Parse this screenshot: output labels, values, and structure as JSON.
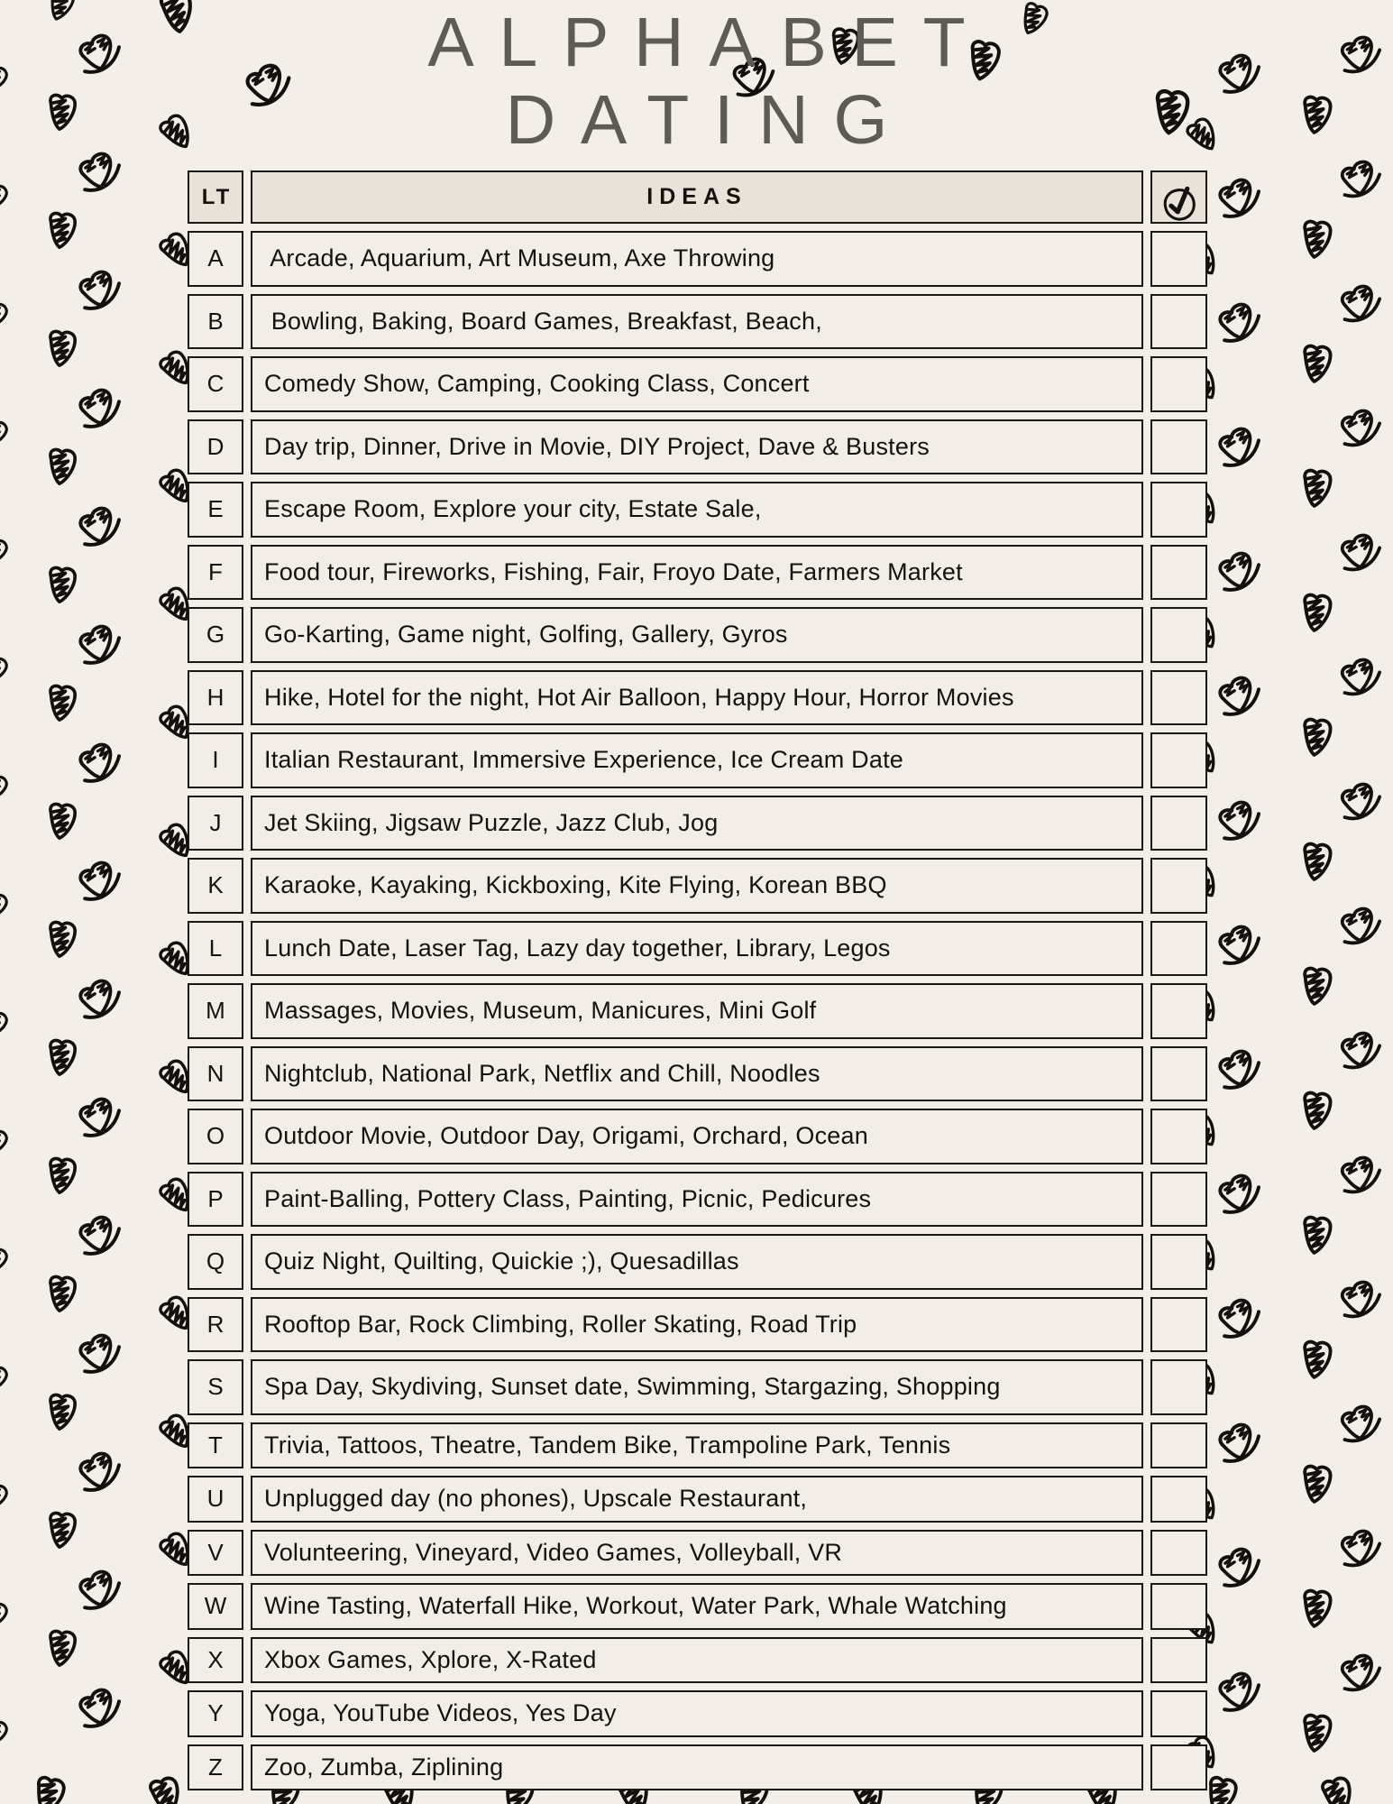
{
  "page": {
    "title_line1": "ALPHABET",
    "title_line2": "DATING"
  },
  "table": {
    "headers": {
      "letter": "LT",
      "ideas": "IDEAS",
      "done_icon": "circled-checkmark-icon"
    },
    "rows": [
      {
        "letter": "A",
        "ideas": " Arcade, Aquarium, Art Museum, Axe Throwing",
        "checked": false
      },
      {
        "letter": "B",
        "ideas": " Bowling, Baking, Board Games, Breakfast, Beach,",
        "checked": false
      },
      {
        "letter": "C",
        "ideas": "Comedy Show, Camping, Cooking Class, Concert",
        "checked": false
      },
      {
        "letter": "D",
        "ideas": "Day trip, Dinner, Drive in Movie, DIY Project, Dave & Busters",
        "checked": false
      },
      {
        "letter": "E",
        "ideas": "Escape Room, Explore your city, Estate Sale,",
        "checked": false
      },
      {
        "letter": "F",
        "ideas": "Food tour, Fireworks, Fishing, Fair, Froyo Date, Farmers Market",
        "checked": false
      },
      {
        "letter": "G",
        "ideas": "Go-Karting, Game night, Golfing, Gallery, Gyros",
        "checked": false
      },
      {
        "letter": "H",
        "ideas": "Hike, Hotel for the night, Hot Air Balloon, Happy Hour, Horror Movies",
        "checked": false
      },
      {
        "letter": "I",
        "ideas": "Italian Restaurant, Immersive Experience, Ice Cream Date",
        "checked": false
      },
      {
        "letter": "J",
        "ideas": "Jet Skiing, Jigsaw Puzzle, Jazz Club, Jog",
        "checked": false
      },
      {
        "letter": "K",
        "ideas": "Karaoke, Kayaking, Kickboxing, Kite Flying, Korean BBQ",
        "checked": false
      },
      {
        "letter": "L",
        "ideas": "Lunch Date, Laser Tag, Lazy day together, Library, Legos",
        "checked": false
      },
      {
        "letter": "M",
        "ideas": "Massages, Movies, Museum, Manicures, Mini Golf",
        "checked": false
      },
      {
        "letter": "N",
        "ideas": "Nightclub, National Park, Netflix and Chill, Noodles",
        "checked": false
      },
      {
        "letter": "O",
        "ideas": "Outdoor Movie, Outdoor Day, Origami, Orchard, Ocean",
        "checked": false
      },
      {
        "letter": "P",
        "ideas": "Paint-Balling, Pottery Class, Painting, Picnic, Pedicures",
        "checked": false
      },
      {
        "letter": "Q",
        "ideas": "Quiz Night, Quilting, Quickie ;), Quesadillas",
        "checked": false
      },
      {
        "letter": "R",
        "ideas": "Rooftop Bar, Rock Climbing, Roller Skating, Road Trip",
        "checked": false
      },
      {
        "letter": "S",
        "ideas": "Spa Day, Skydiving, Sunset date, Swimming, Stargazing, Shopping",
        "checked": false
      },
      {
        "letter": "T",
        "ideas": "Trivia, Tattoos, Theatre, Tandem Bike, Trampoline Park, Tennis",
        "checked": false
      },
      {
        "letter": "U",
        "ideas": "Unplugged day (no phones), Upscale Restaurant,",
        "checked": false
      },
      {
        "letter": "V",
        "ideas": "Volunteering, Vineyard, Video Games, Volleyball, VR",
        "checked": false
      },
      {
        "letter": "W",
        "ideas": "Wine Tasting, Waterfall Hike, Workout, Water Park, Whale Watching",
        "checked": false
      },
      {
        "letter": "X",
        "ideas": "Xbox Games, Xplore, X-Rated",
        "checked": false
      },
      {
        "letter": "Y",
        "ideas": "Yoga, YouTube Videos, Yes Day",
        "checked": false
      },
      {
        "letter": "Z",
        "ideas": "Zoo, Zumba, Ziplining",
        "checked": false
      }
    ]
  },
  "decor": {
    "heart_icon": "doodle-heart-icon",
    "heart_color": "#12100c"
  },
  "colors": {
    "page_bg": "#f3efe8",
    "cell_bg": "#f2eee7",
    "header_bg": "#e9e2d8",
    "border": "#1b1712",
    "ink": "#15120d",
    "title": "#5e5a54",
    "heart": "#12100c"
  }
}
